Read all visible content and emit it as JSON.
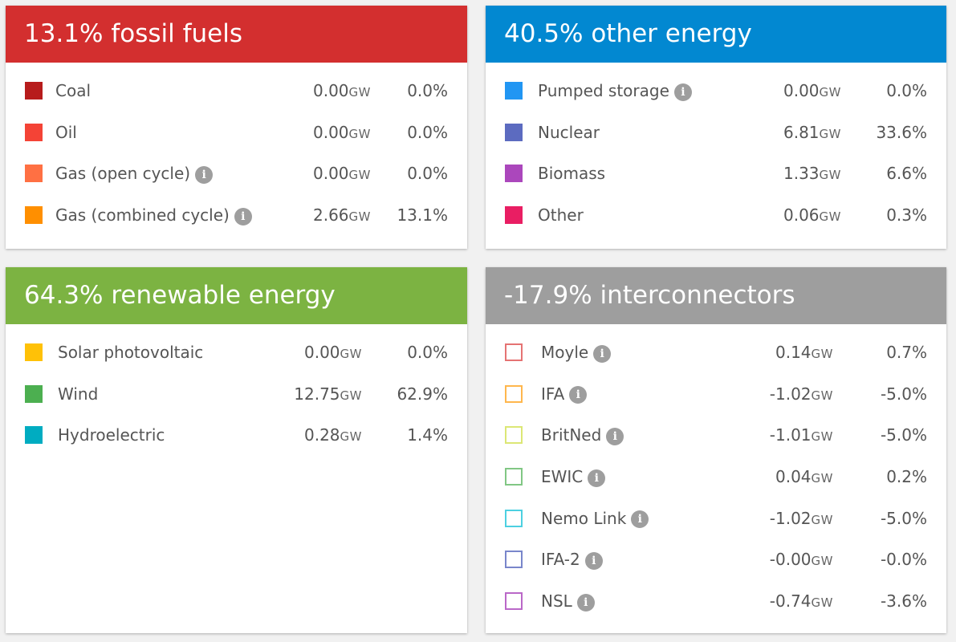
{
  "panels": {
    "fossil": {
      "title": "13.1% fossil fuels",
      "color": "#d32f2f",
      "rows": [
        {
          "label": "Coal",
          "gw": "0.00",
          "pct": "0.0%",
          "color": "#b71c1c",
          "info": false
        },
        {
          "label": "Oil",
          "gw": "0.00",
          "pct": "0.0%",
          "color": "#f44336",
          "info": false
        },
        {
          "label": "Gas (open cycle)",
          "gw": "0.00",
          "pct": "0.0%",
          "color": "#ff7043",
          "info": true
        },
        {
          "label": "Gas (combined cycle)",
          "gw": "2.66",
          "pct": "13.1%",
          "color": "#ff8f00",
          "info": true
        }
      ]
    },
    "other": {
      "title": "40.5% other energy",
      "color": "#0288d1",
      "rows": [
        {
          "label": "Pumped storage",
          "gw": "0.00",
          "pct": "0.0%",
          "color": "#2196f3",
          "info": true
        },
        {
          "label": "Nuclear",
          "gw": "6.81",
          "pct": "33.6%",
          "color": "#5c6bc0",
          "info": false
        },
        {
          "label": "Biomass",
          "gw": "1.33",
          "pct": "6.6%",
          "color": "#ab47bc",
          "info": false
        },
        {
          "label": "Other",
          "gw": "0.06",
          "pct": "0.3%",
          "color": "#e91e63",
          "info": false
        }
      ]
    },
    "renew": {
      "title": "64.3% renewable energy",
      "color": "#7cb342",
      "rows": [
        {
          "label": "Solar photovoltaic",
          "gw": "0.00",
          "pct": "0.0%",
          "color": "#ffc107",
          "info": false
        },
        {
          "label": "Wind",
          "gw": "12.75",
          "pct": "62.9%",
          "color": "#4caf50",
          "info": false
        },
        {
          "label": "Hydroelectric",
          "gw": "0.28",
          "pct": "1.4%",
          "color": "#00acc1",
          "info": false
        }
      ]
    },
    "inter": {
      "title": "-17.9% interconnectors",
      "color": "#9e9e9e",
      "rows": [
        {
          "label": "Moyle",
          "gw": "0.14",
          "pct": "0.7%",
          "color": "#e57373",
          "info": true
        },
        {
          "label": "IFA",
          "gw": "-1.02",
          "pct": "-5.0%",
          "color": "#ffb74d",
          "info": true
        },
        {
          "label": "BritNed",
          "gw": "-1.01",
          "pct": "-5.0%",
          "color": "#dce775",
          "info": true
        },
        {
          "label": "EWIC",
          "gw": "0.04",
          "pct": "0.2%",
          "color": "#81c784",
          "info": true
        },
        {
          "label": "Nemo Link",
          "gw": "-1.02",
          "pct": "-5.0%",
          "color": "#4dd0e1",
          "info": true
        },
        {
          "label": "IFA-2",
          "gw": "-0.00",
          "pct": "-0.0%",
          "color": "#7986cb",
          "info": true
        },
        {
          "label": "NSL",
          "gw": "-0.74",
          "pct": "-3.6%",
          "color": "#ba68c8",
          "info": true
        }
      ]
    }
  },
  "unit": "GW",
  "info_glyph": "i"
}
